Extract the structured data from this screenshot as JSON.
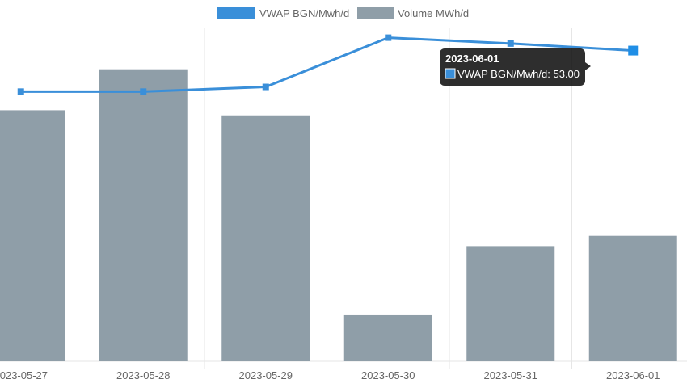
{
  "chart_data": {
    "type": "bar",
    "categories": [
      "2023-05-27",
      "2023-05-28",
      "2023-05-29",
      "2023-05-30",
      "2023-05-31",
      "2023-06-01"
    ],
    "series": [
      {
        "name": "VWAP BGN/Mwh/d",
        "type": "line",
        "color": "#3a8fd9",
        "values": [
          46.0,
          46.0,
          46.8,
          55.2,
          54.2,
          53.0
        ]
      },
      {
        "name": "Volume MWh/d",
        "type": "bar",
        "color": "#8f9ea8",
        "values": [
          49,
          57,
          48,
          9,
          22.5,
          24.5
        ]
      }
    ],
    "legend": {
      "position": "top-center"
    },
    "grid": true,
    "line_ylim": [
      0,
      56.8
    ],
    "bar_ylim": [
      0,
      65
    ],
    "tooltip": {
      "title": "2023-06-01",
      "label": "VWAP BGN/Mwh/d: 53.00",
      "color": "#3a8fd9"
    }
  }
}
